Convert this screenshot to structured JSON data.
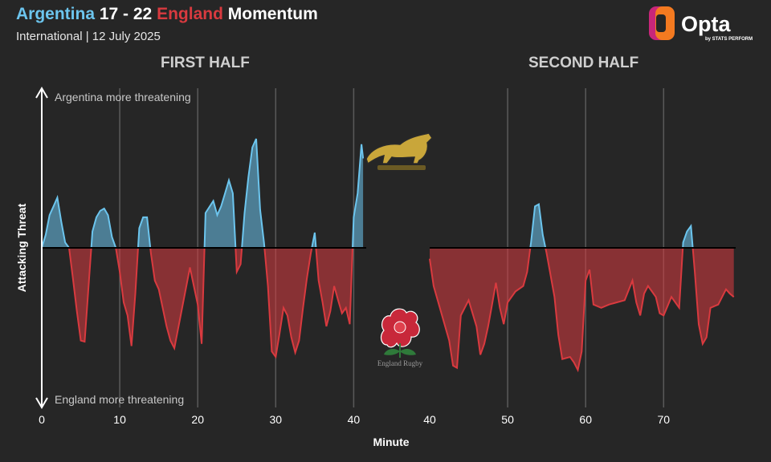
{
  "header": {
    "team_home": "Argentina",
    "score": " 17 - 22 ",
    "team_away": "England",
    "suffix": " Momentum",
    "subtitle": "International | 12 July 2025"
  },
  "brand": {
    "name": "Opta",
    "tagline": "by STATS PERFORM"
  },
  "colors": {
    "argentina": "#6cc5ee",
    "england": "#d93a3f",
    "background": "#262626"
  },
  "crests": {
    "argentina": "puma-crest",
    "england": "rose-crest",
    "england_text": "England Rugby"
  },
  "chart_data": {
    "type": "area",
    "title": "Argentina 17 - 22 England Momentum",
    "xlabel": "Minute",
    "ylabel": "Attacking Threat",
    "annotations": {
      "top": "Argentina more threatening",
      "bottom": "England more threatening"
    },
    "ylim": [
      -1,
      1
    ],
    "grid": true,
    "panels": [
      {
        "label": "FIRST HALF",
        "xlim": [
          0,
          42
        ],
        "ticks": [
          0,
          10,
          20,
          30,
          40
        ],
        "gridlines": [
          10,
          20,
          30,
          40
        ],
        "points": [
          [
            0,
            0
          ],
          [
            0.5,
            0.12
          ],
          [
            1,
            0.3
          ],
          [
            1.5,
            0.38
          ],
          [
            2,
            0.46
          ],
          [
            2.5,
            0.24
          ],
          [
            3,
            0.05
          ],
          [
            3.5,
            0
          ],
          [
            4,
            -0.28
          ],
          [
            4.5,
            -0.58
          ],
          [
            5,
            -0.85
          ],
          [
            5.5,
            -0.86
          ],
          [
            6,
            -0.35
          ],
          [
            6.5,
            0.15
          ],
          [
            7,
            0.28
          ],
          [
            7.5,
            0.34
          ],
          [
            8,
            0.36
          ],
          [
            8.5,
            0.3
          ],
          [
            9,
            0.1
          ],
          [
            9.5,
            0
          ],
          [
            10,
            -0.22
          ],
          [
            10.5,
            -0.5
          ],
          [
            11,
            -0.62
          ],
          [
            11.5,
            -0.9
          ],
          [
            12,
            -0.42
          ],
          [
            12.5,
            0.18
          ],
          [
            13,
            0.28
          ],
          [
            13.5,
            0.28
          ],
          [
            14,
            -0.05
          ],
          [
            14.5,
            -0.3
          ],
          [
            15,
            -0.38
          ],
          [
            16,
            -0.72
          ],
          [
            16.5,
            -0.85
          ],
          [
            17,
            -0.92
          ],
          [
            18,
            -0.55
          ],
          [
            19,
            -0.18
          ],
          [
            20,
            -0.52
          ],
          [
            20.5,
            -0.88
          ],
          [
            21,
            0.32
          ],
          [
            22,
            0.43
          ],
          [
            22.5,
            0.3
          ],
          [
            23,
            0.38
          ],
          [
            23.5,
            0.5
          ],
          [
            24,
            0.62
          ],
          [
            24.5,
            0.5
          ],
          [
            25,
            -0.22
          ],
          [
            25.5,
            -0.15
          ],
          [
            26,
            0.32
          ],
          [
            26.5,
            0.65
          ],
          [
            27,
            0.92
          ],
          [
            27.5,
            1.0
          ],
          [
            28,
            0.35
          ],
          [
            28.5,
            0.05
          ],
          [
            29,
            -0.35
          ],
          [
            29.5,
            -0.95
          ],
          [
            30,
            -1.0
          ],
          [
            30.5,
            -0.78
          ],
          [
            31,
            -0.55
          ],
          [
            31.5,
            -0.62
          ],
          [
            32,
            -0.82
          ],
          [
            32.5,
            -0.96
          ],
          [
            33,
            -0.85
          ],
          [
            33.5,
            -0.55
          ],
          [
            34,
            -0.28
          ],
          [
            34.5,
            -0.05
          ],
          [
            35,
            0.14
          ],
          [
            35.5,
            -0.3
          ],
          [
            36,
            -0.5
          ],
          [
            36.5,
            -0.72
          ],
          [
            37,
            -0.58
          ],
          [
            37.5,
            -0.35
          ],
          [
            38,
            -0.48
          ],
          [
            38.5,
            -0.6
          ],
          [
            39,
            -0.55
          ],
          [
            39.5,
            -0.7
          ],
          [
            40,
            0.28
          ],
          [
            40.5,
            0.5
          ],
          [
            41,
            0.95
          ],
          [
            41.2,
            0.82
          ]
        ]
      },
      {
        "label": "SECOND HALF",
        "xlim": [
          40,
          79
        ],
        "ticks": [
          40,
          50,
          60,
          70
        ],
        "gridlines": [
          50,
          60,
          70
        ],
        "points": [
          [
            40,
            -0.1
          ],
          [
            40.5,
            -0.35
          ],
          [
            41.5,
            -0.6
          ],
          [
            42.5,
            -0.85
          ],
          [
            43,
            -1.08
          ],
          [
            43.5,
            -1.1
          ],
          [
            44,
            -0.62
          ],
          [
            45,
            -0.48
          ],
          [
            46,
            -0.72
          ],
          [
            46.5,
            -0.98
          ],
          [
            47,
            -0.88
          ],
          [
            47.5,
            -0.72
          ],
          [
            48,
            -0.52
          ],
          [
            48.5,
            -0.32
          ],
          [
            49,
            -0.55
          ],
          [
            49.5,
            -0.7
          ],
          [
            50,
            -0.5
          ],
          [
            51,
            -0.4
          ],
          [
            52,
            -0.35
          ],
          [
            52.5,
            -0.22
          ],
          [
            53,
            0.05
          ],
          [
            53.5,
            0.38
          ],
          [
            54,
            0.4
          ],
          [
            54.5,
            0.12
          ],
          [
            55,
            -0.05
          ],
          [
            56,
            -0.45
          ],
          [
            56.5,
            -0.8
          ],
          [
            57,
            -1.02
          ],
          [
            58,
            -1.0
          ],
          [
            58.5,
            -1.05
          ],
          [
            59,
            -1.12
          ],
          [
            59.5,
            -0.95
          ],
          [
            60,
            -0.3
          ],
          [
            60.5,
            -0.2
          ],
          [
            61,
            -0.52
          ],
          [
            62,
            -0.55
          ],
          [
            63,
            -0.52
          ],
          [
            64,
            -0.5
          ],
          [
            65,
            -0.48
          ],
          [
            66,
            -0.3
          ],
          [
            66.5,
            -0.5
          ],
          [
            67,
            -0.62
          ],
          [
            67.5,
            -0.42
          ],
          [
            68,
            -0.35
          ],
          [
            69,
            -0.45
          ],
          [
            69.5,
            -0.6
          ],
          [
            70,
            -0.62
          ],
          [
            71,
            -0.45
          ],
          [
            72,
            -0.55
          ],
          [
            72.5,
            0.05
          ],
          [
            73,
            0.15
          ],
          [
            73.5,
            0.2
          ],
          [
            74,
            -0.22
          ],
          [
            74.5,
            -0.7
          ],
          [
            75,
            -0.88
          ],
          [
            75.5,
            -0.82
          ],
          [
            76,
            -0.55
          ],
          [
            77,
            -0.52
          ],
          [
            78,
            -0.38
          ],
          [
            78.5,
            -0.42
          ],
          [
            79,
            -0.45
          ]
        ]
      }
    ]
  }
}
